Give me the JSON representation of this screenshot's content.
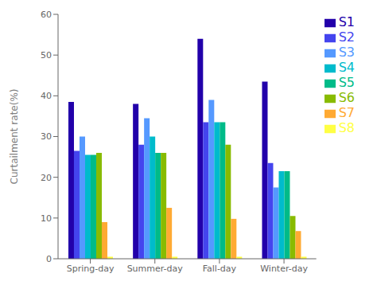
{
  "chart_data": {
    "type": "bar",
    "ylabel": "Curtailment rate(%)",
    "categories": [
      "Spring-day",
      "Summer-day",
      "Fall-day",
      "Winter-day"
    ],
    "series": [
      {
        "name": "S1",
        "color": "#2200aa",
        "values": [
          38.5,
          38.0,
          54.0,
          43.5
        ]
      },
      {
        "name": "S2",
        "color": "#4444ee",
        "values": [
          26.5,
          28.0,
          33.5,
          23.5
        ]
      },
      {
        "name": "S3",
        "color": "#5599ff",
        "values": [
          30.0,
          34.5,
          39.0,
          17.5
        ]
      },
      {
        "name": "S4",
        "color": "#00bbcc",
        "values": [
          25.5,
          30.0,
          33.5,
          21.5
        ]
      },
      {
        "name": "S5",
        "color": "#00bb88",
        "values": [
          25.5,
          26.0,
          33.5,
          21.5
        ]
      },
      {
        "name": "S6",
        "color": "#88bb00",
        "values": [
          26.0,
          26.0,
          28.0,
          10.5
        ]
      },
      {
        "name": "S7",
        "color": "#ffaa33",
        "values": [
          9.0,
          12.5,
          9.8,
          6.8
        ]
      },
      {
        "name": "S8",
        "color": "#ffff44",
        "values": [
          0.5,
          0.5,
          0.5,
          0.5
        ]
      }
    ],
    "ylim": [
      0,
      60
    ],
    "yticks": [
      0,
      10,
      20,
      30,
      40,
      50,
      60
    ],
    "grid": false,
    "legend": "right"
  }
}
